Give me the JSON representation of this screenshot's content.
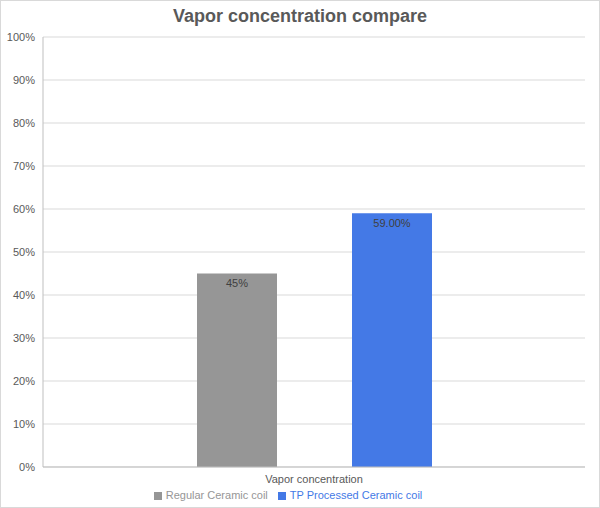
{
  "chart_data": {
    "type": "bar",
    "title": "Vapor concentration compare",
    "categories": [
      "Vapor concentration"
    ],
    "series": [
      {
        "name": "Regular Ceramic coil",
        "color": "#969696",
        "values": [
          45
        ],
        "value_labels": [
          "45%"
        ]
      },
      {
        "name": "TP Processed Ceramic coil",
        "color": "#4479e6",
        "values": [
          59
        ],
        "value_labels": [
          "59.00%"
        ]
      }
    ],
    "ylim": [
      0,
      100
    ],
    "yticks": [
      {
        "value": 0,
        "label": "0%"
      },
      {
        "value": 10,
        "label": "10%"
      },
      {
        "value": 20,
        "label": "20%"
      },
      {
        "value": 30,
        "label": "30%"
      },
      {
        "value": 40,
        "label": "40%"
      },
      {
        "value": 50,
        "label": "50%"
      },
      {
        "value": 60,
        "label": "60%"
      },
      {
        "value": 70,
        "label": "70%"
      },
      {
        "value": 80,
        "label": "80%"
      },
      {
        "value": 90,
        "label": "90%"
      },
      {
        "value": 100,
        "label": "100%"
      }
    ],
    "grid": true,
    "legend": "bottom",
    "data_labels": true
  }
}
